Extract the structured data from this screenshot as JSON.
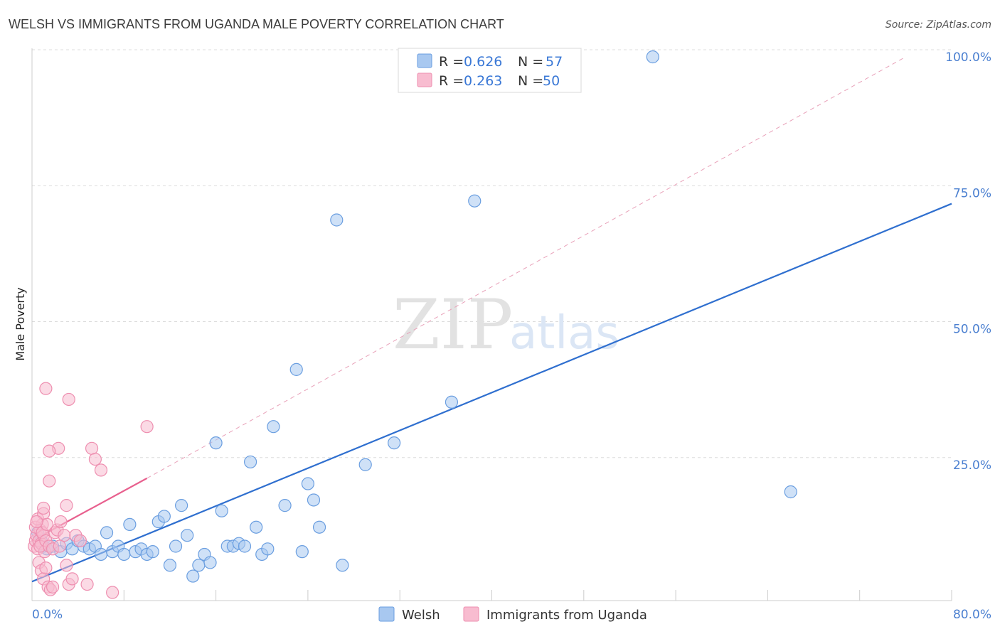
{
  "chart_data": {
    "type": "scatter",
    "title": "WELSH VS IMMIGRANTS FROM UGANDA MALE POVERTY CORRELATION CHART",
    "source": "Source: ZipAtlas.com",
    "ylabel": "Male Poverty",
    "xlim": [
      0,
      80
    ],
    "ylim": [
      0,
      100
    ],
    "x_tick_labels": {
      "min": "0.0%",
      "max": "80.0%"
    },
    "y_ticks": [
      {
        "value": 25,
        "label": "25.0%"
      },
      {
        "value": 50,
        "label": "50.0%"
      },
      {
        "value": 75,
        "label": "75.0%"
      },
      {
        "value": 100,
        "label": "100.0%"
      }
    ],
    "watermark": {
      "zip": "ZIP",
      "atlas": "atlas"
    },
    "legend": {
      "items": [
        {
          "r_label": "R = ",
          "r_value": "0.626",
          "n_label": "N = ",
          "n_value": "57"
        },
        {
          "r_label": "R = ",
          "r_value": "0.263",
          "n_label": "N = ",
          "n_value": "50"
        }
      ]
    },
    "series": [
      {
        "name": "Welsh",
        "color": "#a8c8f0",
        "stroke": "#6a9ee0",
        "trend": {
          "x0": 0,
          "y0": 3.5,
          "x1": 80,
          "y1": 73.0,
          "color": "#2f6fcf"
        },
        "points": [
          [
            0.5,
            12.5
          ],
          [
            0.8,
            11
          ],
          [
            1.0,
            10
          ],
          [
            1.3,
            9.5
          ],
          [
            1.8,
            10
          ],
          [
            2.5,
            9
          ],
          [
            3.0,
            10.5
          ],
          [
            3.5,
            9.5
          ],
          [
            4.0,
            11
          ],
          [
            4.5,
            10
          ],
          [
            5.0,
            9.5
          ],
          [
            5.5,
            10
          ],
          [
            6.0,
            8.5
          ],
          [
            6.5,
            12.5
          ],
          [
            7.0,
            9
          ],
          [
            7.5,
            10
          ],
          [
            8.0,
            8.5
          ],
          [
            8.5,
            14
          ],
          [
            9.0,
            9
          ],
          [
            9.5,
            9.5
          ],
          [
            10.0,
            8.5
          ],
          [
            10.5,
            9
          ],
          [
            11.0,
            14.5
          ],
          [
            11.5,
            15.5
          ],
          [
            12.0,
            6.5
          ],
          [
            12.5,
            10
          ],
          [
            13.0,
            17.5
          ],
          [
            13.5,
            12
          ],
          [
            14.0,
            4.5
          ],
          [
            14.5,
            6.5
          ],
          [
            15.0,
            8.5
          ],
          [
            15.5,
            7
          ],
          [
            16.0,
            29
          ],
          [
            16.5,
            16.5
          ],
          [
            17.0,
            10
          ],
          [
            17.5,
            10
          ],
          [
            18.0,
            10.5
          ],
          [
            18.5,
            10
          ],
          [
            19.0,
            25.5
          ],
          [
            19.5,
            13.5
          ],
          [
            20.0,
            8.5
          ],
          [
            20.5,
            9.5
          ],
          [
            21.0,
            32
          ],
          [
            22.0,
            17.5
          ],
          [
            23.0,
            42.5
          ],
          [
            23.5,
            9
          ],
          [
            24.0,
            21.5
          ],
          [
            24.5,
            18.5
          ],
          [
            25.0,
            13.5
          ],
          [
            26.5,
            70
          ],
          [
            27.0,
            6.5
          ],
          [
            29.0,
            25
          ],
          [
            31.5,
            29
          ],
          [
            36.5,
            36.5
          ],
          [
            38.5,
            73.5
          ],
          [
            54.0,
            100
          ],
          [
            66.0,
            20
          ]
        ]
      },
      {
        "name": "Immigrants from Uganda",
        "color": "#f8bcd0",
        "stroke": "#ee8fb0",
        "trend": {
          "x0": 0,
          "y0": 11.0,
          "x1": 10,
          "y1": 22.5,
          "color": "#e8608e"
        },
        "dashed": {
          "x0": 10,
          "y0": 22.5,
          "x1": 76,
          "y1": 100,
          "color": "#e8a0b8"
        },
        "points": [
          [
            0.2,
            10
          ],
          [
            0.3,
            11
          ],
          [
            0.4,
            12
          ],
          [
            0.5,
            9.5
          ],
          [
            0.6,
            11
          ],
          [
            0.7,
            13
          ],
          [
            0.8,
            10.5
          ],
          [
            0.9,
            14
          ],
          [
            1.0,
            12
          ],
          [
            1.1,
            9
          ],
          [
            0.3,
            13.5
          ],
          [
            0.5,
            15
          ],
          [
            0.7,
            10
          ],
          [
            0.9,
            12.5
          ],
          [
            1.2,
            11
          ],
          [
            1.0,
            16
          ],
          [
            1.3,
            14
          ],
          [
            1.5,
            10
          ],
          [
            0.6,
            7
          ],
          [
            0.8,
            5.5
          ],
          [
            1.0,
            4
          ],
          [
            1.2,
            6
          ],
          [
            1.4,
            2.5
          ],
          [
            1.6,
            2
          ],
          [
            1.8,
            2.5
          ],
          [
            2.0,
            12.5
          ],
          [
            2.2,
            13
          ],
          [
            2.5,
            14.5
          ],
          [
            2.8,
            12
          ],
          [
            3.0,
            6.5
          ],
          [
            3.2,
            3
          ],
          [
            3.5,
            4
          ],
          [
            3.8,
            12
          ],
          [
            4.2,
            11
          ],
          [
            4.8,
            3
          ],
          [
            5.2,
            28
          ],
          [
            5.5,
            26
          ],
          [
            6.0,
            24
          ],
          [
            7.0,
            1.5
          ],
          [
            3.0,
            17.5
          ],
          [
            2.3,
            28
          ],
          [
            1.5,
            27.5
          ],
          [
            1.2,
            39
          ],
          [
            3.2,
            37
          ],
          [
            10.0,
            32
          ],
          [
            1.5,
            22
          ],
          [
            1.0,
            17
          ],
          [
            0.4,
            14.5
          ],
          [
            1.8,
            9.5
          ],
          [
            2.4,
            10
          ]
        ]
      }
    ]
  }
}
